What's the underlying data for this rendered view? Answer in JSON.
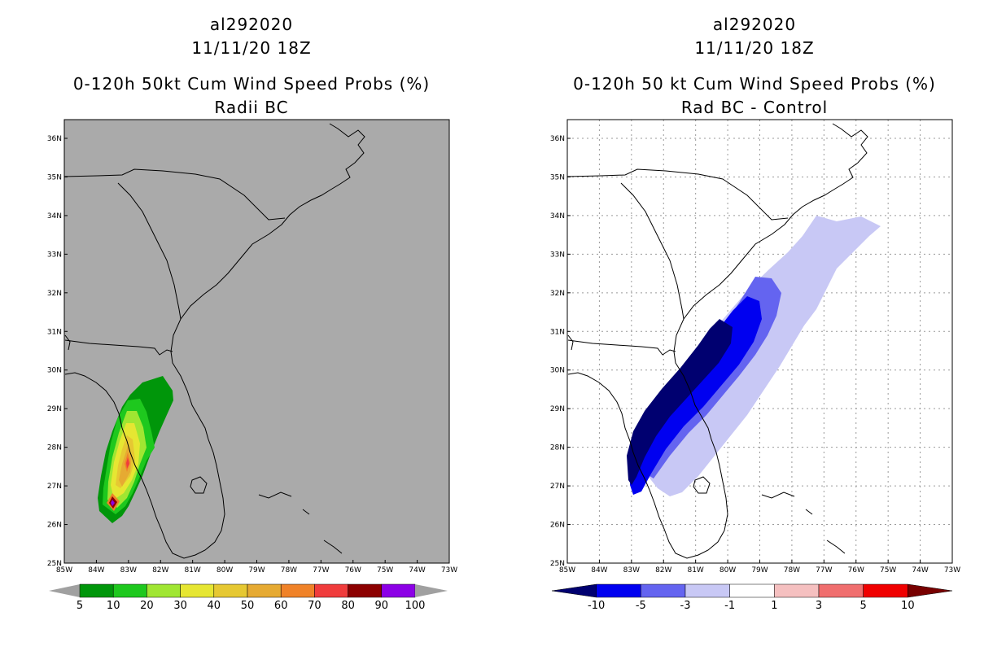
{
  "left_panel": {
    "storm_id": "al292020",
    "datetime": "11/11/20 18Z",
    "title": "0-120h 50kt Cum Wind Speed Probs (%)",
    "subtitle": "Radii BC",
    "colorbar": {
      "labels": [
        "5",
        "10",
        "20",
        "30",
        "40",
        "50",
        "60",
        "70",
        "80",
        "90",
        "100"
      ],
      "colors": [
        "#00960a",
        "#1ec81e",
        "#a0e632",
        "#e6e632",
        "#e6c832",
        "#e6aa32",
        "#f08228",
        "#f03c3c",
        "#8c0000",
        "#8c00e6"
      ],
      "arrow_color": "#a0a0a0"
    },
    "background_color": "#aaaaaa"
  },
  "right_panel": {
    "storm_id": "al292020",
    "datetime": "11/11/20 18Z",
    "title": "0-120h 50 kt Cum Wind Speed Probs (%)",
    "subtitle": "Rad BC - Control",
    "colorbar": {
      "labels": [
        "-10",
        "-5",
        "-3",
        "-1",
        "1",
        "3",
        "5",
        "10"
      ],
      "colors": [
        "#000070",
        "#0000f0",
        "#6464f0",
        "#c8c8f5",
        "#ffffff",
        "#f5c0c0",
        "#f06e6e",
        "#f00000",
        "#780000"
      ]
    }
  },
  "axes": {
    "lat_labels": [
      "36N",
      "35N",
      "34N",
      "33N",
      "32N",
      "31N",
      "30N",
      "29N",
      "28N",
      "27N",
      "26N",
      "25N"
    ],
    "lon_labels": [
      "85W",
      "84W",
      "83W",
      "82W",
      "81W",
      "80W",
      "79W",
      "78W",
      "77W",
      "76W",
      "75W",
      "74W",
      "73W"
    ]
  }
}
